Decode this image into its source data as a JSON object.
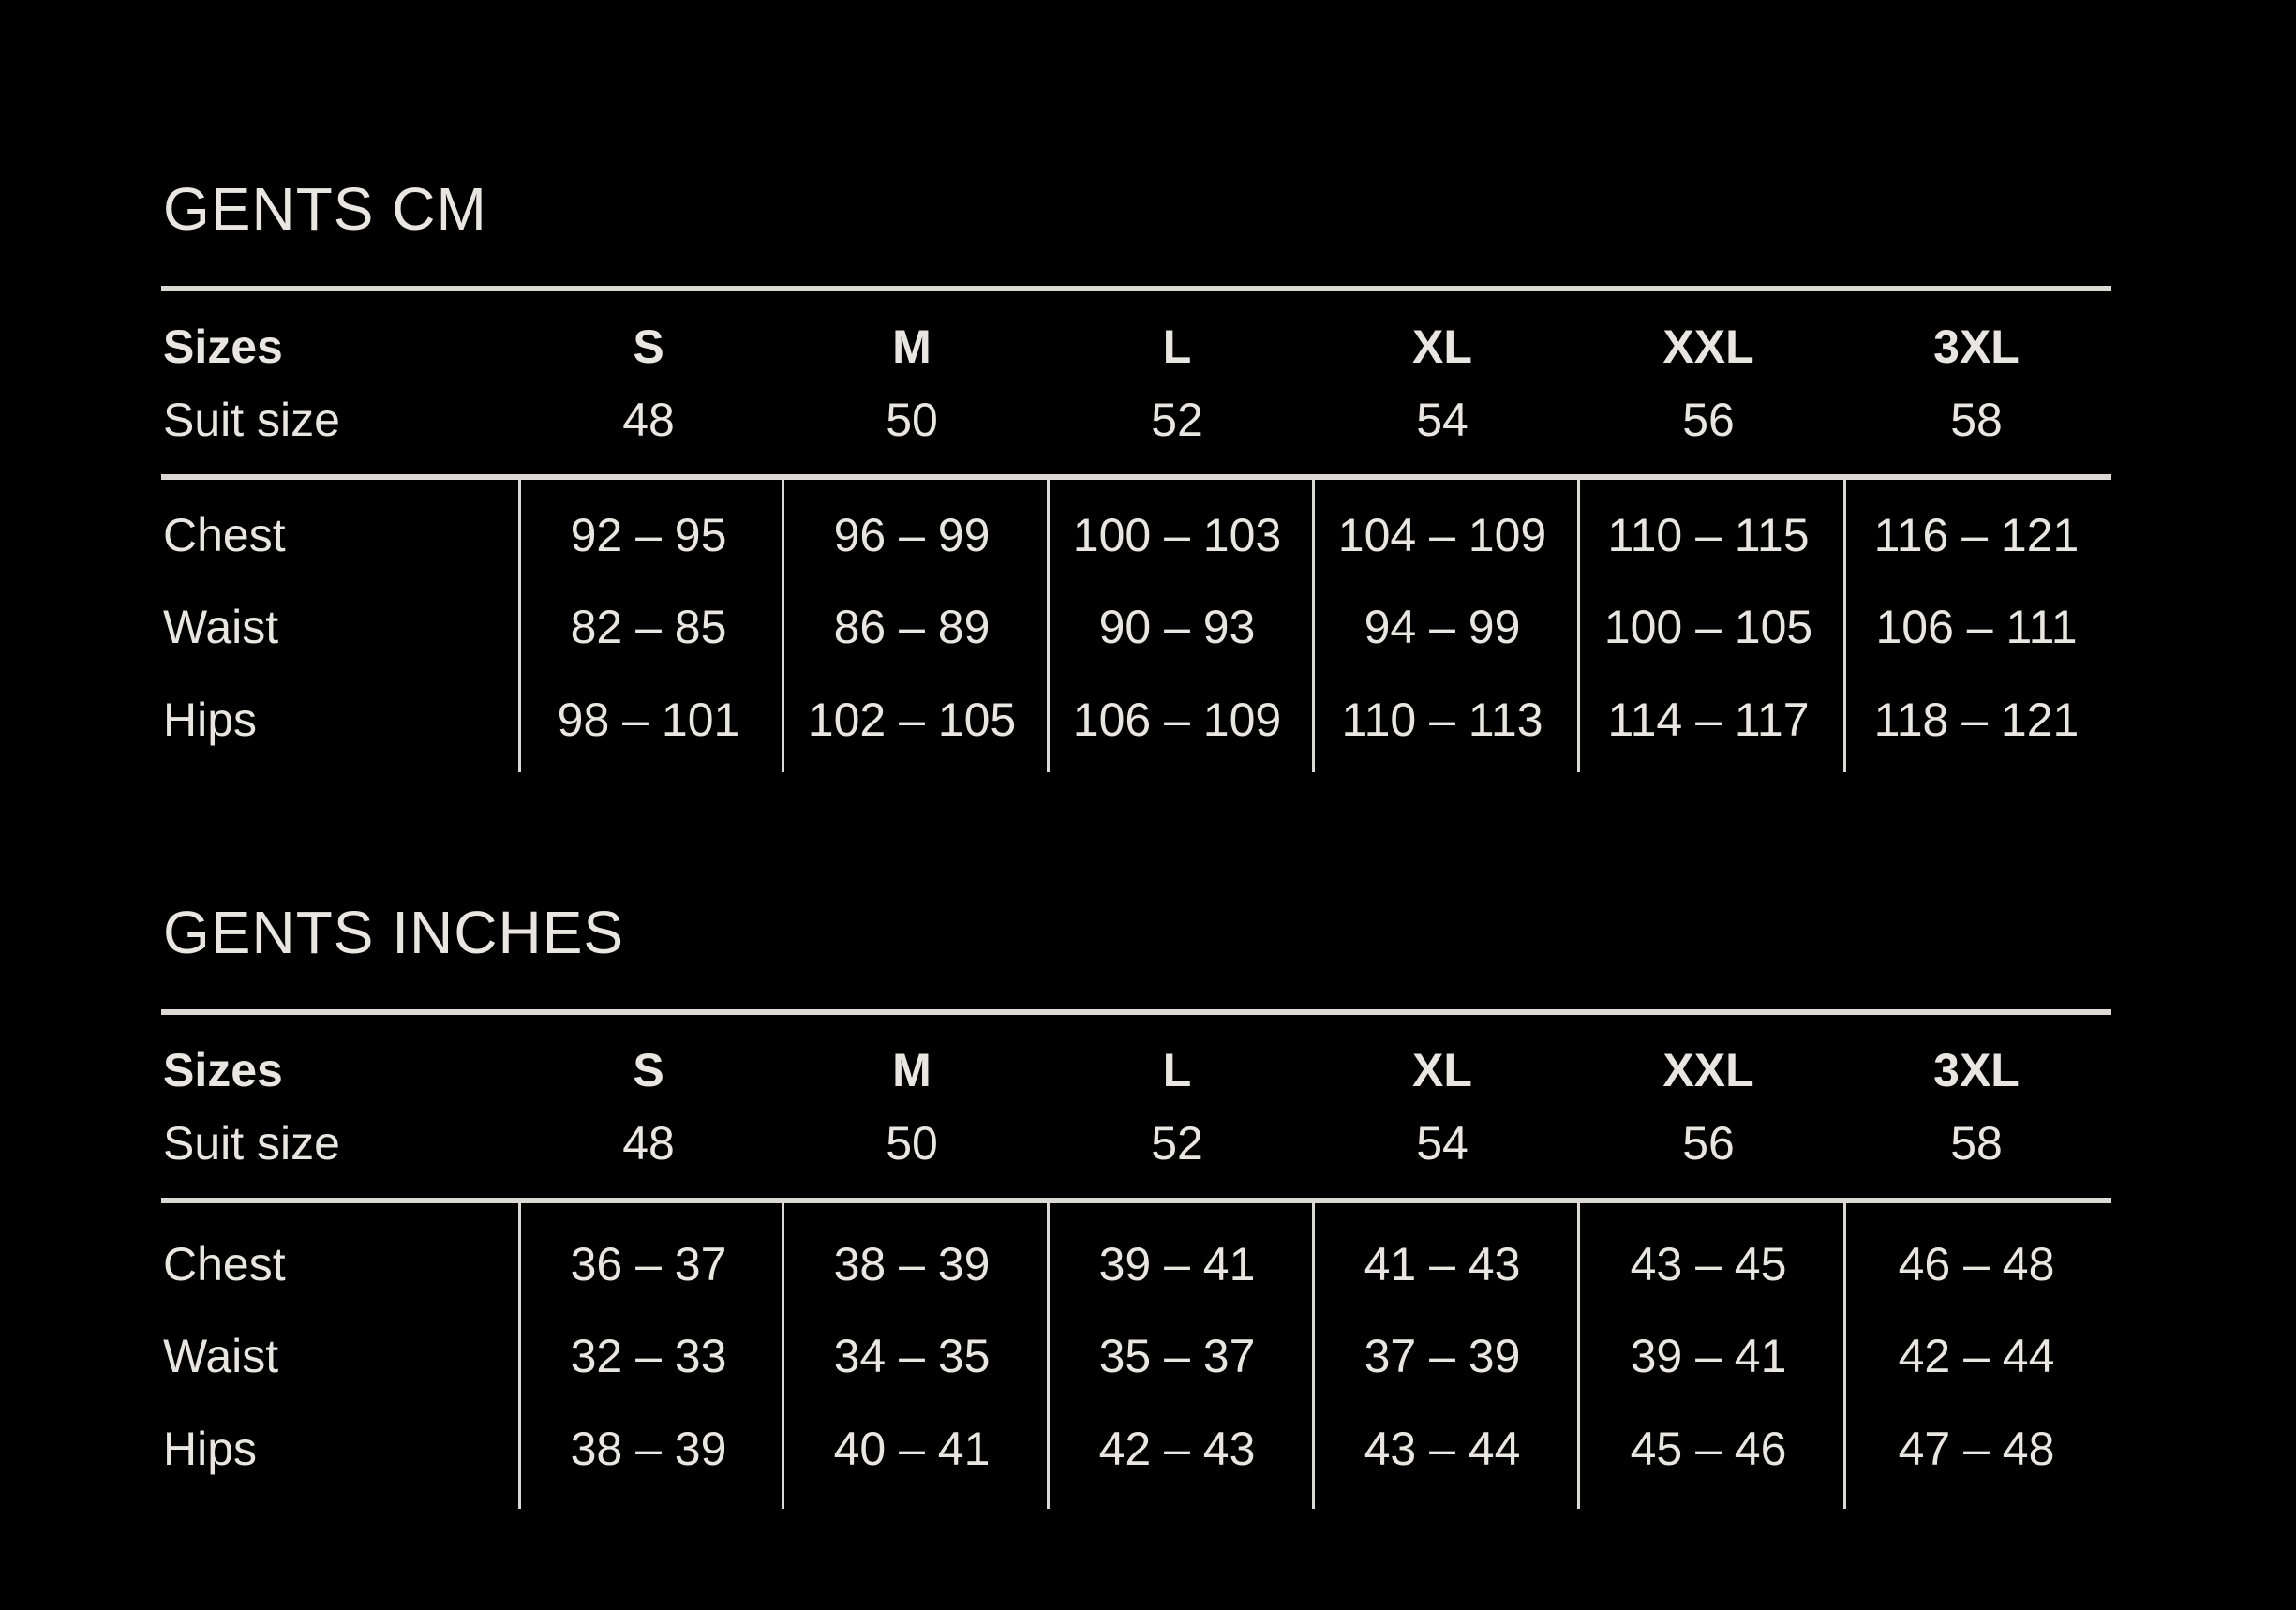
{
  "tables": [
    {
      "title": "GENTS CM",
      "header_label": "Sizes",
      "sizes": [
        "S",
        "M",
        "L",
        "XL",
        "XXL",
        "3XL"
      ],
      "suit_label": "Suit size",
      "suit_sizes": [
        "48",
        "50",
        "52",
        "54",
        "56",
        "58"
      ],
      "rows": [
        {
          "label": "Chest",
          "values": [
            "92 – 95",
            "96 – 99",
            "100 – 103",
            "104 – 109",
            "110 – 115",
            "116 – 121"
          ]
        },
        {
          "label": "Waist",
          "values": [
            "82 – 85",
            "86 – 89",
            "90 – 93",
            "94 – 99",
            "100 – 105",
            "106 – 111"
          ]
        },
        {
          "label": "Hips",
          "values": [
            "98 – 101",
            "102 – 105",
            "106 – 109",
            "110 – 113",
            "114 – 117",
            "118 – 121"
          ]
        }
      ]
    },
    {
      "title": "GENTS INCHES",
      "header_label": "Sizes",
      "sizes": [
        "S",
        "M",
        "L",
        "XL",
        "XXL",
        "3XL"
      ],
      "suit_label": "Suit size",
      "suit_sizes": [
        "48",
        "50",
        "52",
        "54",
        "56",
        "58"
      ],
      "rows": [
        {
          "label": "Chest",
          "values": [
            "36 – 37",
            "38 – 39",
            "39 – 41",
            "41 – 43",
            "43 – 45",
            "46 – 48"
          ]
        },
        {
          "label": "Waist",
          "values": [
            "32 – 33",
            "34 – 35",
            "35 – 37",
            "37 – 39",
            "39 – 41",
            "42 – 44"
          ]
        },
        {
          "label": "Hips",
          "values": [
            "38 – 39",
            "40 – 41",
            "42 – 43",
            "43 – 44",
            "45 – 46",
            "47 – 48"
          ]
        }
      ]
    }
  ]
}
